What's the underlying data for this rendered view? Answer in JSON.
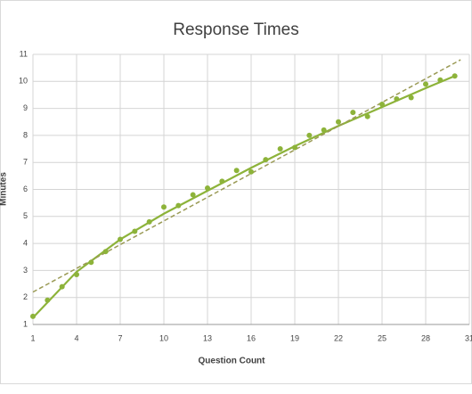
{
  "chart_data": {
    "type": "scatter",
    "title": "Response Times",
    "xlabel": "Question Count",
    "ylabel": "Minutes",
    "x": [
      1,
      2,
      3,
      4,
      5,
      6,
      7,
      8,
      9,
      10,
      11,
      12,
      13,
      14,
      15,
      16,
      17,
      18,
      19,
      20,
      21,
      22,
      23,
      24,
      25,
      26,
      27,
      28,
      29,
      30
    ],
    "values": [
      1.3,
      1.9,
      2.4,
      2.85,
      3.3,
      3.7,
      4.15,
      4.45,
      4.8,
      5.35,
      5.4,
      5.8,
      6.05,
      6.3,
      6.7,
      6.65,
      7.1,
      7.5,
      7.55,
      8.0,
      8.2,
      8.5,
      8.85,
      8.7,
      9.15,
      9.35,
      9.4,
      9.9,
      10.05,
      10.2
    ],
    "color": "#8db33a",
    "trendlines": [
      {
        "color": "#8db33a",
        "dashed": false,
        "x": [
          1,
          4,
          7,
          10,
          13,
          16,
          19,
          22,
          25,
          28,
          30
        ],
        "values": [
          1.25,
          2.95,
          4.15,
          5.1,
          5.95,
          6.8,
          7.6,
          8.35,
          9.05,
          9.75,
          10.2
        ]
      },
      {
        "color": "#9a9a55",
        "dashed": true,
        "x": [
          1,
          30.4
        ],
        "values": [
          2.2,
          10.8
        ]
      }
    ],
    "xlim": [
      1,
      31
    ],
    "xticks": [
      1,
      4,
      7,
      10,
      13,
      16,
      19,
      22,
      25,
      28,
      31
    ],
    "ylim": [
      1,
      11
    ],
    "yticks": [
      1,
      2,
      3,
      4,
      5,
      6,
      7,
      8,
      9,
      10,
      11
    ],
    "grid": true
  }
}
